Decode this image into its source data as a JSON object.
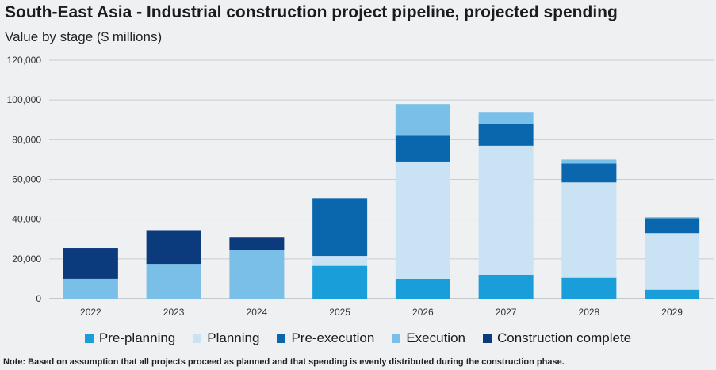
{
  "title": "South-East Asia - Industrial construction project pipeline, projected spending",
  "subtitle": "Value by stage ($ millions)",
  "note": "Note: Based on assumption that all projects proceed as planned and that spending is evenly distributed during the construction phase.",
  "colors": {
    "background": "#eef0f2",
    "gridline": "#c9ced3"
  },
  "chart_data": {
    "type": "bar",
    "stacked": true,
    "categories": [
      "2022",
      "2023",
      "2024",
      "2025",
      "2026",
      "2027",
      "2028",
      "2029"
    ],
    "ylim": [
      0,
      120000
    ],
    "yticks": [
      0,
      20000,
      40000,
      60000,
      80000,
      100000,
      120000
    ],
    "ytick_labels": [
      "0",
      "20,000",
      "40,000",
      "60,000",
      "80,000",
      "100,000",
      "120,000"
    ],
    "grid": true,
    "legend_position": "bottom",
    "series": [
      {
        "name": "Pre-planning",
        "color": "#1a9ed9",
        "values": [
          0,
          0,
          0,
          16500,
          10000,
          12000,
          10500,
          4500
        ]
      },
      {
        "name": "Planning",
        "color": "#c9e3f5",
        "values": [
          0,
          0,
          0,
          5000,
          59000,
          65000,
          48000,
          28500
        ]
      },
      {
        "name": "Pre-execution",
        "color": "#0a67ad",
        "values": [
          0,
          0,
          0,
          29000,
          13000,
          11000,
          9500,
          7500
        ]
      },
      {
        "name": "Execution",
        "color": "#7abfe8",
        "values": [
          10000,
          17500,
          24500,
          0,
          16000,
          6000,
          2000,
          500
        ]
      },
      {
        "name": "Construction complete",
        "color": "#0b3b7d",
        "values": [
          15500,
          17000,
          6500,
          0,
          0,
          0,
          0,
          0
        ]
      }
    ]
  }
}
